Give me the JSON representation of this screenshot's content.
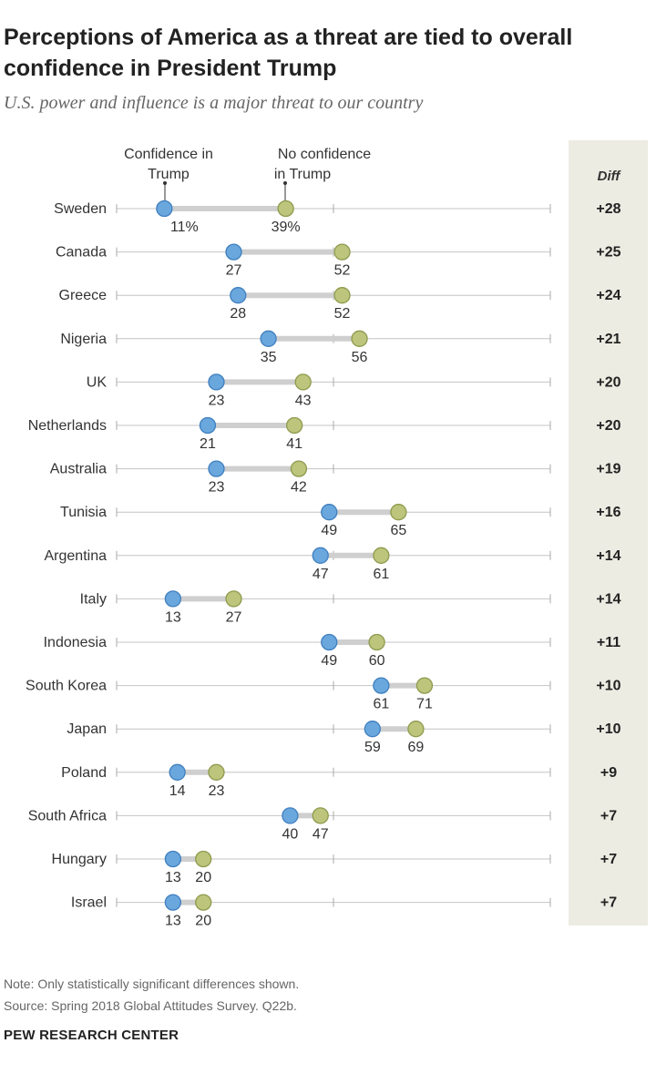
{
  "title": "Perceptions of America as a threat are tied to overall confidence in President Trump",
  "subtitle": "U.S. power and influence is a major threat to our country",
  "legend": {
    "series_a_line1": "Confidence in",
    "series_a_line2": "Trump",
    "series_b_line1": "No confidence",
    "series_b_line2": "in Trump"
  },
  "diff_header": "Diff",
  "note": "Note: Only statistically significant differences shown.",
  "source": "Source: Spring 2018 Global Attitudes Survey. Q22b.",
  "brand": "PEW RESEARCH CENTER",
  "chart_data": {
    "type": "dot-plot",
    "xlim": [
      0,
      100
    ],
    "colors": {
      "confidence": "#6aa7dd",
      "no_confidence": "#bcc57b",
      "connector": "#cfcfcf",
      "axis": "#c4c4c4"
    },
    "series": [
      {
        "name": "Confidence in Trump",
        "key": "confidence"
      },
      {
        "name": "No confidence in Trump",
        "key": "no_confidence"
      }
    ],
    "rows": [
      {
        "country": "Sweden",
        "confidence": 11,
        "no_confidence": 39,
        "diff": "+28",
        "conf_label": "11%",
        "noconf_label": "39%"
      },
      {
        "country": "Canada",
        "confidence": 27,
        "no_confidence": 52,
        "diff": "+25",
        "conf_label": "27",
        "noconf_label": "52"
      },
      {
        "country": "Greece",
        "confidence": 28,
        "no_confidence": 52,
        "diff": "+24",
        "conf_label": "28",
        "noconf_label": "52"
      },
      {
        "country": "Nigeria",
        "confidence": 35,
        "no_confidence": 56,
        "diff": "+21",
        "conf_label": "35",
        "noconf_label": "56"
      },
      {
        "country": "UK",
        "confidence": 23,
        "no_confidence": 43,
        "diff": "+20",
        "conf_label": "23",
        "noconf_label": "43"
      },
      {
        "country": "Netherlands",
        "confidence": 21,
        "no_confidence": 41,
        "diff": "+20",
        "conf_label": "21",
        "noconf_label": "41"
      },
      {
        "country": "Australia",
        "confidence": 23,
        "no_confidence": 42,
        "diff": "+19",
        "conf_label": "23",
        "noconf_label": "42"
      },
      {
        "country": "Tunisia",
        "confidence": 49,
        "no_confidence": 65,
        "diff": "+16",
        "conf_label": "49",
        "noconf_label": "65"
      },
      {
        "country": "Argentina",
        "confidence": 47,
        "no_confidence": 61,
        "diff": "+14",
        "conf_label": "47",
        "noconf_label": "61"
      },
      {
        "country": "Italy",
        "confidence": 13,
        "no_confidence": 27,
        "diff": "+14",
        "conf_label": "13",
        "noconf_label": "27"
      },
      {
        "country": "Indonesia",
        "confidence": 49,
        "no_confidence": 60,
        "diff": "+11",
        "conf_label": "49",
        "noconf_label": "60"
      },
      {
        "country": "South Korea",
        "confidence": 61,
        "no_confidence": 71,
        "diff": "+10",
        "conf_label": "61",
        "noconf_label": "71"
      },
      {
        "country": "Japan",
        "confidence": 59,
        "no_confidence": 69,
        "diff": "+10",
        "conf_label": "59",
        "noconf_label": "69"
      },
      {
        "country": "Poland",
        "confidence": 14,
        "no_confidence": 23,
        "diff": "+9",
        "conf_label": "14",
        "noconf_label": "23"
      },
      {
        "country": "South Africa",
        "confidence": 40,
        "no_confidence": 47,
        "diff": "+7",
        "conf_label": "40",
        "noconf_label": "47"
      },
      {
        "country": "Hungary",
        "confidence": 13,
        "no_confidence": 20,
        "diff": "+7",
        "conf_label": "13",
        "noconf_label": "20"
      },
      {
        "country": "Israel",
        "confidence": 13,
        "no_confidence": 20,
        "diff": "+7",
        "conf_label": "13",
        "noconf_label": "20"
      }
    ]
  }
}
